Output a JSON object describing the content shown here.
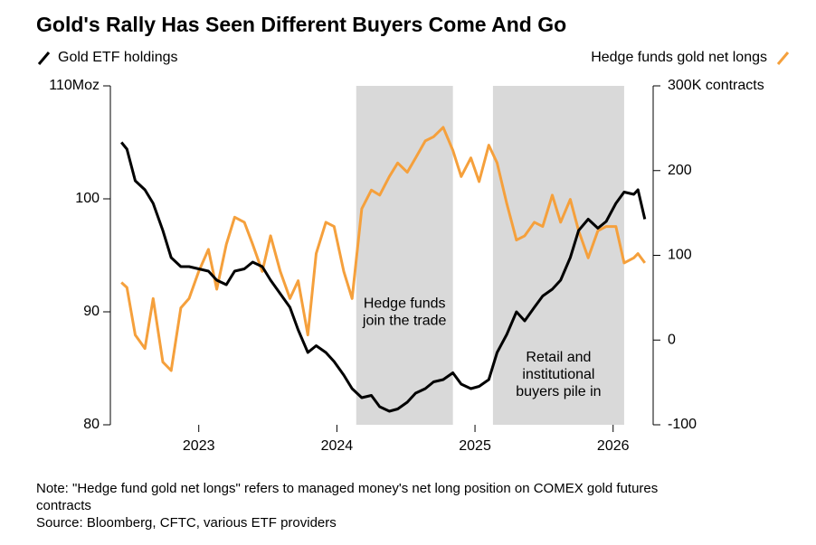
{
  "chart_data": {
    "type": "line",
    "title": "Gold's Rally Has Seen Different Buyers Come And Go",
    "note": [
      "Note: \"Hedge fund gold net longs\" refers to managed money's net long position on COMEX gold futures",
      "contracts"
    ],
    "source": "Source: Bloomberg, CFTC, various ETF providers",
    "x": [
      2022.44,
      2022.48,
      2022.54,
      2022.61,
      2022.67,
      2022.74,
      2022.8,
      2022.87,
      2022.93,
      2023.0,
      2023.07,
      2023.13,
      2023.2,
      2023.26,
      2023.33,
      2023.39,
      2023.46,
      2023.52,
      2023.59,
      2023.66,
      2023.72,
      2023.79,
      2023.85,
      2023.92,
      2023.98,
      2024.05,
      2024.11,
      2024.18,
      2024.25,
      2024.31,
      2024.38,
      2024.44,
      2024.51,
      2024.57,
      2024.64,
      2024.7,
      2024.77,
      2024.84,
      2024.9,
      2024.97,
      2025.03,
      2025.1,
      2025.16,
      2025.23,
      2025.3,
      2025.36,
      2025.43,
      2025.49,
      2025.56,
      2025.62,
      2025.69,
      2025.75,
      2025.82,
      2025.89,
      2025.95,
      2026.02,
      2026.08,
      2026.15,
      2026.18,
      2026.23
    ],
    "series": [
      {
        "name": "Gold ETF holdings",
        "color": "#000000",
        "axis": "y",
        "values": [
          105.0,
          104.4,
          101.6,
          100.8,
          99.6,
          97.2,
          94.8,
          94.0,
          94.0,
          93.8,
          93.6,
          92.8,
          92.4,
          93.6,
          93.8,
          94.4,
          94.0,
          92.8,
          91.6,
          90.4,
          88.4,
          86.4,
          87.0,
          86.4,
          85.6,
          84.4,
          83.2,
          82.4,
          82.6,
          81.6,
          81.2,
          81.4,
          82.0,
          82.8,
          83.2,
          83.8,
          84.0,
          84.6,
          83.6,
          83.2,
          83.4,
          84.0,
          86.4,
          88.0,
          90.0,
          89.2,
          90.4,
          91.4,
          92.0,
          92.8,
          94.8,
          97.2,
          98.2,
          97.4,
          98.0,
          99.6,
          100.6,
          100.4,
          100.8,
          98.2
        ]
      },
      {
        "name": "Hedge funds gold net longs",
        "color": "#f5a03c",
        "axis": "y2",
        "values": [
          68,
          62,
          6,
          -10,
          49,
          -26,
          -36,
          38,
          49,
          81,
          107,
          60,
          113,
          145,
          139,
          113,
          81,
          123,
          81,
          49,
          70,
          6,
          102,
          139,
          134,
          81,
          49,
          155,
          177,
          171,
          193,
          209,
          198,
          215,
          235,
          240,
          251,
          224,
          193,
          215,
          187,
          230,
          209,
          161,
          118,
          123,
          139,
          134,
          171,
          139,
          166,
          129,
          97,
          129,
          134,
          134,
          91,
          97,
          102,
          91
        ]
      }
    ],
    "xlim": [
      2022.36,
      2026.29
    ],
    "xticks": [
      2023,
      2024,
      2025,
      2026
    ],
    "ylim": [
      80,
      110
    ],
    "yticks": [
      80,
      90,
      100,
      {
        "value": 110,
        "label": "110Moz"
      }
    ],
    "y2lim": [
      -100,
      300
    ],
    "y2ticks": [
      -100,
      0,
      100,
      200,
      {
        "value": 300,
        "label": "300K contracts"
      }
    ],
    "highlights": [
      {
        "x": [
          2024.14,
          2024.84
        ],
        "label": [
          "Hedge funds",
          "join the trade"
        ]
      },
      {
        "x": [
          2025.13,
          2026.08
        ],
        "label": [
          "Retail and",
          "institutional",
          "buyers pile in"
        ]
      }
    ]
  }
}
